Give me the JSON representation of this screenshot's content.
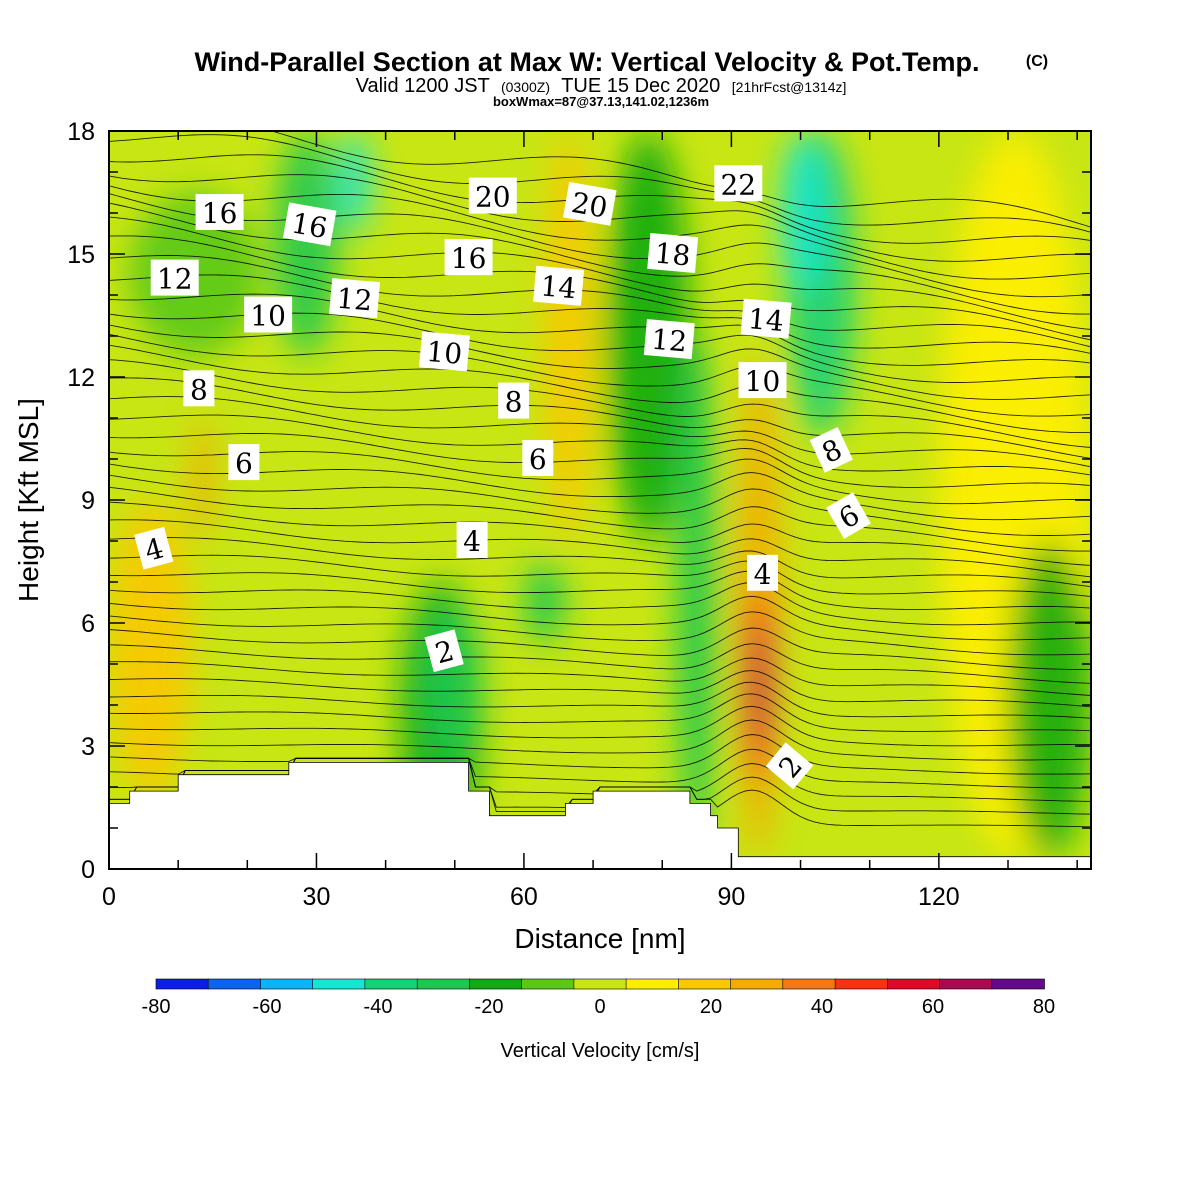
{
  "chart_data": {
    "type": "heatmap",
    "title": "Wind-Parallel Section at Max W: Vertical Velocity & Pot.Temp.",
    "copyright_mark": "(C)",
    "subtitle_valid": "Valid 1200 JST",
    "subtitle_utc": "(0300Z)",
    "subtitle_date": "TUE 15 Dec 2020",
    "subtitle_fcst": "[21hrFcst@1314z]",
    "subtitle_box": "boxWmax=87@37.13,141.02,1236m",
    "xlabel": "Distance [nm]",
    "ylabel": "Height [Kft MSL]",
    "xlim": [
      0,
      142
    ],
    "ylim": [
      0,
      18
    ],
    "x_ticks": [
      0,
      30,
      60,
      90,
      120
    ],
    "y_ticks": [
      0,
      3,
      6,
      9,
      12,
      15,
      18
    ],
    "colorbar": {
      "label": "Vertical Velocity [cm/s]",
      "range": [
        -80,
        80
      ],
      "tick_values": [
        -80,
        -60,
        -40,
        -20,
        0,
        20,
        40,
        60,
        80
      ],
      "colors": [
        "#0a1ee6",
        "#0a64f0",
        "#0ab4fa",
        "#14e6d2",
        "#14d278",
        "#1ec850",
        "#12aa12",
        "#5ac814",
        "#c8e614",
        "#ffee00",
        "#fac800",
        "#f5aa00",
        "#f57814",
        "#fa3214",
        "#dc0a28",
        "#aa0a50",
        "#640a8c"
      ]
    },
    "velocity_cells": [
      {
        "x": [
          0,
          12
        ],
        "y": [
          1.7,
          9.0
        ],
        "w": 15
      },
      {
        "x": [
          3,
          22
        ],
        "y": [
          12.5,
          16.5
        ],
        "w": -5
      },
      {
        "x": [
          12,
          15
        ],
        "y": [
          8.0,
          11.0
        ],
        "w": 25
      },
      {
        "x": [
          24,
          33
        ],
        "y": [
          12.5,
          18.0
        ],
        "w": -25
      },
      {
        "x": [
          33,
          38
        ],
        "y": [
          15.5,
          18.0
        ],
        "w": -45
      },
      {
        "x": [
          42,
          54
        ],
        "y": [
          0.5,
          7.0
        ],
        "w": -15
      },
      {
        "x": [
          45,
          54
        ],
        "y": [
          2.5,
          6.5
        ],
        "w": -25
      },
      {
        "x": [
          60,
          66
        ],
        "y": [
          5.5,
          7.5
        ],
        "w": -25
      },
      {
        "x": [
          63,
          70
        ],
        "y": [
          8.0,
          18.0
        ],
        "w": 15
      },
      {
        "x": [
          72,
          84
        ],
        "y": [
          8.0,
          18.0
        ],
        "w": -15
      },
      {
        "x": [
          82,
          88
        ],
        "y": [
          0.3,
          13.0
        ],
        "w": -25
      },
      {
        "x": [
          91,
          97
        ],
        "y": [
          0.3,
          12.5
        ],
        "w": 25
      },
      {
        "x": [
          92,
          96
        ],
        "y": [
          2.0,
          7.0
        ],
        "w": 45
      },
      {
        "x": [
          93,
          95.5
        ],
        "y": [
          3.0,
          6.0
        ],
        "w": 65
      },
      {
        "x": [
          98,
          108
        ],
        "y": [
          10.5,
          18.0
        ],
        "w": -35
      },
      {
        "x": [
          97,
          104
        ],
        "y": [
          14.0,
          18.0
        ],
        "w": -45
      },
      {
        "x": [
          120,
          142
        ],
        "y": [
          0.3,
          18.0
        ],
        "w": 5
      },
      {
        "x": [
          130,
          142
        ],
        "y": [
          0.3,
          8.0
        ],
        "w": -15
      }
    ],
    "terrain": [
      [
        0,
        1.6
      ],
      [
        3,
        1.6
      ],
      [
        3,
        1.9
      ],
      [
        10,
        1.9
      ],
      [
        10,
        2.3
      ],
      [
        26,
        2.3
      ],
      [
        26,
        2.6
      ],
      [
        52,
        2.6
      ],
      [
        52,
        1.9
      ],
      [
        55,
        1.9
      ],
      [
        55,
        1.3
      ],
      [
        66,
        1.3
      ],
      [
        66,
        1.6
      ],
      [
        70,
        1.6
      ],
      [
        70,
        1.9
      ],
      [
        84,
        1.9
      ],
      [
        84,
        1.6
      ],
      [
        87,
        1.6
      ],
      [
        87,
        1.3
      ],
      [
        88,
        1.3
      ],
      [
        88,
        1.0
      ],
      [
        91,
        1.0
      ],
      [
        91,
        0.3
      ],
      [
        142,
        0.3
      ]
    ],
    "theta_contour_labels": [
      {
        "text": "2",
        "x": 48.5,
        "y": 5.3,
        "rot": -15
      },
      {
        "text": "2",
        "x": 98.5,
        "y": 2.5,
        "rot": -50
      },
      {
        "text": "4",
        "x": 6.5,
        "y": 7.8,
        "rot": -15
      },
      {
        "text": "4",
        "x": 52.5,
        "y": 8.0,
        "rot": 0
      },
      {
        "text": "4",
        "x": 94.5,
        "y": 7.2,
        "rot": 0
      },
      {
        "text": "6",
        "x": 19.5,
        "y": 9.9,
        "rot": 0
      },
      {
        "text": "6",
        "x": 62.0,
        "y": 10.0,
        "rot": 0
      },
      {
        "text": "6",
        "x": 107.0,
        "y": 8.6,
        "rot": -30
      },
      {
        "text": "8",
        "x": 13.0,
        "y": 11.7,
        "rot": 0
      },
      {
        "text": "8",
        "x": 58.5,
        "y": 11.4,
        "rot": 0
      },
      {
        "text": "8",
        "x": 104.5,
        "y": 10.2,
        "rot": -25
      },
      {
        "text": "10",
        "x": 23.0,
        "y": 13.5,
        "rot": 0
      },
      {
        "text": "10",
        "x": 48.5,
        "y": 12.6,
        "rot": 5
      },
      {
        "text": "10",
        "x": 94.5,
        "y": 11.9,
        "rot": 0
      },
      {
        "text": "12",
        "x": 9.5,
        "y": 14.4,
        "rot": 0
      },
      {
        "text": "12",
        "x": 35.5,
        "y": 13.9,
        "rot": 5
      },
      {
        "text": "12",
        "x": 81.0,
        "y": 12.9,
        "rot": 5
      },
      {
        "text": "14",
        "x": 65.0,
        "y": 14.2,
        "rot": 5
      },
      {
        "text": "14",
        "x": 95.0,
        "y": 13.4,
        "rot": 5
      },
      {
        "text": "16",
        "x": 16.0,
        "y": 16.0,
        "rot": 0
      },
      {
        "text": "16",
        "x": 29.0,
        "y": 15.7,
        "rot": 10
      },
      {
        "text": "16",
        "x": 52.0,
        "y": 14.9,
        "rot": 0
      },
      {
        "text": "18",
        "x": 81.5,
        "y": 15.0,
        "rot": 5
      },
      {
        "text": "20",
        "x": 55.5,
        "y": 16.4,
        "rot": 0
      },
      {
        "text": "20",
        "x": 69.5,
        "y": 16.2,
        "rot": 10
      },
      {
        "text": "22",
        "x": 91.0,
        "y": 16.7,
        "rot": 0
      }
    ]
  }
}
